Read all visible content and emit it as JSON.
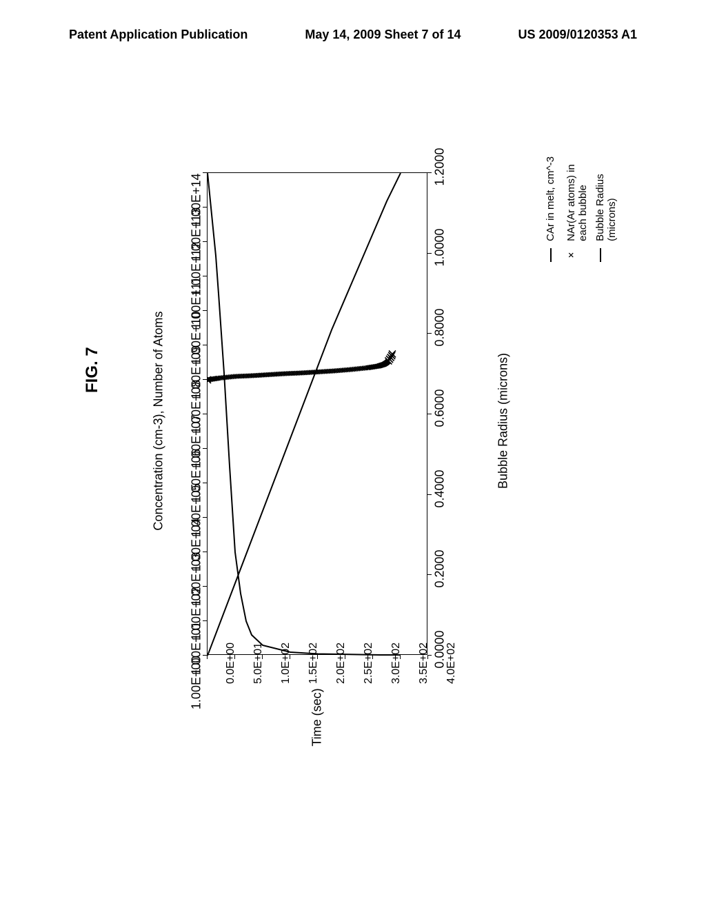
{
  "header": {
    "left": "Patent Application Publication",
    "center": "May 14, 2009  Sheet 7 of 14",
    "right": "US 2009/0120353 A1"
  },
  "figure": {
    "label": "FIG. 7"
  },
  "chart": {
    "type": "dual-axis-line-scatter",
    "x_axis": {
      "label": "Time (sec)",
      "ticks": [
        "0.0E+00",
        "5.0E+01",
        "1.0E+02",
        "1.5E+02",
        "2.0E+02",
        "2.5E+02",
        "3.0E+02",
        "3.5E+02",
        "4.0E+02"
      ],
      "min": 0,
      "max": 400
    },
    "y_left_axis": {
      "label": "Concentration (cm-3), Number of Atoms",
      "scale": "log",
      "ticks": [
        "1.00E+00",
        "1.00E+01",
        "1.00E+02",
        "1.00E+03",
        "1.00E+04",
        "1.00E+05",
        "1.00E+06",
        "1.00E+07",
        "1.00E+08",
        "1.00E+09",
        "1.00E+10",
        "1.00E+11",
        "1.00E+12",
        "1.00E+13",
        "1.00E+14"
      ],
      "min_exp": 0,
      "max_exp": 14
    },
    "y_right_axis": {
      "label": "Bubble Radius (microns)",
      "scale": "linear",
      "ticks": [
        "0.0000",
        "0.2000",
        "0.4000",
        "0.6000",
        "0.8000",
        "1.0000",
        "1.2000"
      ],
      "min": 0,
      "max": 1.2
    },
    "series": {
      "car": {
        "label": "CAr in melt, cm^-3",
        "marker": "line",
        "axis": "left",
        "color": "#000000",
        "points": [
          [
            0,
            14
          ],
          [
            5,
            13.2
          ],
          [
            10,
            12.4
          ],
          [
            15,
            11.6
          ],
          [
            20,
            10.5
          ],
          [
            30,
            8.2
          ],
          [
            40,
            5.5
          ],
          [
            50,
            3.0
          ],
          [
            60,
            1.8
          ],
          [
            70,
            1.0
          ],
          [
            80,
            0.6
          ],
          [
            100,
            0.3
          ],
          [
            150,
            0.1
          ],
          [
            200,
            0.05
          ],
          [
            350,
            0.01
          ]
        ]
      },
      "nar": {
        "label": "NAr(Ar atoms) in each bubble",
        "marker": "x",
        "axis": "left",
        "color": "#000000",
        "points": [
          [
            0,
            8.0
          ],
          [
            20,
            8.05
          ],
          [
            50,
            8.1
          ],
          [
            80,
            8.12
          ],
          [
            110,
            8.15
          ],
          [
            140,
            8.18
          ],
          [
            170,
            8.2
          ],
          [
            200,
            8.23
          ],
          [
            230,
            8.26
          ],
          [
            260,
            8.3
          ],
          [
            290,
            8.35
          ],
          [
            310,
            8.4
          ],
          [
            320,
            8.45
          ],
          [
            325,
            8.5
          ],
          [
            328,
            8.55
          ],
          [
            330,
            8.6
          ],
          [
            332,
            8.65
          ],
          [
            334,
            8.7
          ],
          [
            335,
            8.75
          ]
        ]
      },
      "radius": {
        "label": "Bubble Radius (microns)",
        "marker": "line",
        "axis": "right",
        "color": "#000000",
        "points": [
          [
            0,
            0.0
          ],
          [
            25,
            0.09
          ],
          [
            50,
            0.18
          ],
          [
            75,
            0.27
          ],
          [
            100,
            0.36
          ],
          [
            125,
            0.45
          ],
          [
            150,
            0.54
          ],
          [
            175,
            0.63
          ],
          [
            200,
            0.72
          ],
          [
            225,
            0.81
          ],
          [
            250,
            0.89
          ],
          [
            275,
            0.97
          ],
          [
            300,
            1.05
          ],
          [
            325,
            1.13
          ],
          [
            350,
            1.2
          ]
        ]
      }
    },
    "legend": {
      "items": [
        {
          "marker": "line",
          "text": "CAr in melt, cm^-3"
        },
        {
          "marker": "x",
          "text": "NAr(Ar atoms) in\neach bubble"
        },
        {
          "marker": "line",
          "text": "Bubble Radius\n(microns)"
        }
      ]
    },
    "colors": {
      "axis": "#000000",
      "background": "#ffffff",
      "text": "#000000"
    }
  }
}
